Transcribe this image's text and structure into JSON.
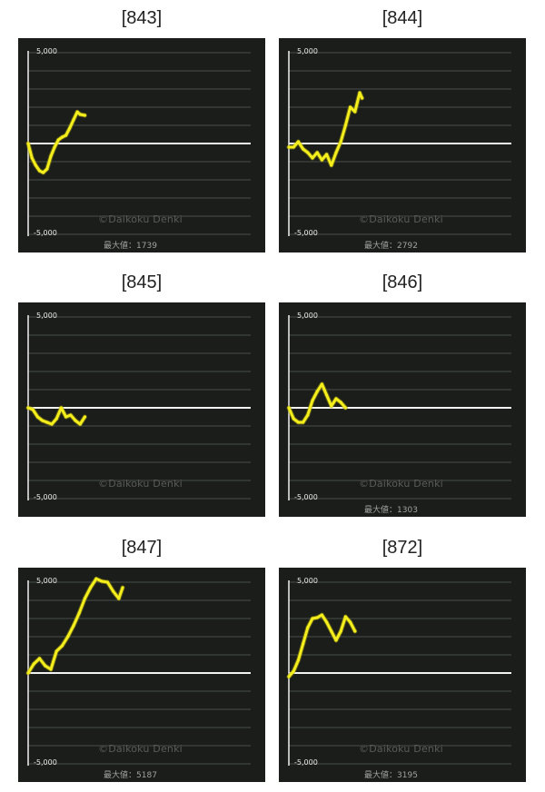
{
  "watermark": "©Daikoku Denki",
  "max_prefix": "最大値：",
  "colors": {
    "background": "#1a1d1a",
    "line": "#f4ee1c",
    "grid": "#4a4e4a",
    "baseline": "#f2f2f2"
  },
  "chart_data": [
    {
      "type": "line",
      "title": "[843]",
      "yticks": [
        "5,000",
        "-5,000"
      ],
      "ylim": [
        -5000,
        5000
      ],
      "max_value": "1739",
      "x": [
        0,
        8,
        16,
        24,
        32,
        40,
        48,
        56,
        64,
        72,
        80,
        88,
        96,
        104,
        110,
        120
      ],
      "y": [
        0,
        -800,
        -1200,
        -1500,
        -1600,
        -1400,
        -700,
        -200,
        200,
        350,
        450,
        850,
        1300,
        1739,
        1600,
        1550
      ]
    },
    {
      "type": "line",
      "title": "[844]",
      "yticks": [
        "5,000",
        "-5,000"
      ],
      "ylim": [
        -5000,
        5000
      ],
      "max_value": "2792",
      "x": [
        0,
        10,
        20,
        30,
        40,
        50,
        60,
        70,
        80,
        90,
        100,
        110,
        120,
        130,
        140,
        150,
        155
      ],
      "y": [
        -200,
        -200,
        100,
        -300,
        -500,
        -800,
        -500,
        -900,
        -600,
        -1200,
        -500,
        100,
        1000,
        2000,
        1750,
        2792,
        2500
      ]
    },
    {
      "type": "line",
      "title": "[845]",
      "yticks": [
        "5,000",
        "-5,000"
      ],
      "ylim": [
        -5000,
        5000
      ],
      "max_value": "",
      "x": [
        0,
        10,
        20,
        30,
        40,
        50,
        60,
        70,
        80,
        90,
        100,
        110,
        120
      ],
      "y": [
        0,
        -100,
        -500,
        -700,
        -800,
        -900,
        -600,
        0,
        -500,
        -400,
        -700,
        -900,
        -500
      ]
    },
    {
      "type": "line",
      "title": "[846]",
      "yticks": [
        "5,000",
        "-5,000"
      ],
      "ylim": [
        -5000,
        5000
      ],
      "max_value": "1303",
      "x": [
        0,
        10,
        20,
        30,
        40,
        50,
        60,
        70,
        80,
        90,
        100,
        110,
        120
      ],
      "y": [
        0,
        -600,
        -800,
        -800,
        -400,
        400,
        900,
        1303,
        700,
        100,
        500,
        300,
        0
      ]
    },
    {
      "type": "line",
      "title": "[847]",
      "yticks": [
        "5,000",
        "-5,000"
      ],
      "ylim": [
        -5000,
        5000
      ],
      "max_value": "5187",
      "x": [
        0,
        12,
        24,
        36,
        48,
        60,
        72,
        84,
        96,
        108,
        120,
        132,
        144,
        156,
        168,
        180,
        192,
        200
      ],
      "y": [
        0,
        500,
        800,
        400,
        200,
        1200,
        1500,
        2000,
        2600,
        3300,
        4100,
        4700,
        5187,
        5050,
        5000,
        4500,
        4100,
        4700
      ]
    },
    {
      "type": "line",
      "title": "[872]",
      "yticks": [
        "5,000",
        "-5,000"
      ],
      "ylim": [
        -5000,
        5000
      ],
      "max_value": "3195",
      "x": [
        0,
        10,
        20,
        30,
        40,
        50,
        60,
        70,
        80,
        90,
        100,
        110,
        120,
        130,
        140
      ],
      "y": [
        -200,
        100,
        700,
        1600,
        2500,
        3000,
        3050,
        3195,
        2800,
        2300,
        1800,
        2300,
        3100,
        2800,
        2300
      ]
    }
  ]
}
